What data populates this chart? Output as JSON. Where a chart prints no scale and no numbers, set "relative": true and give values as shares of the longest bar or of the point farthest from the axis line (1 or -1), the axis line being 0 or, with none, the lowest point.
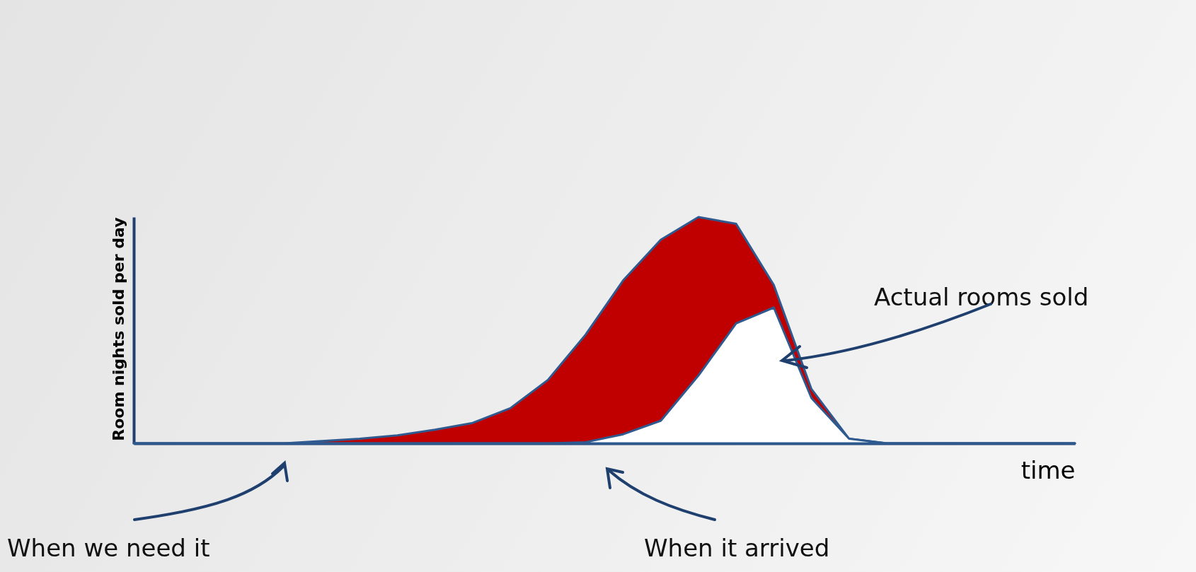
{
  "chart_data": {
    "type": "area",
    "relative": true,
    "xlabel": "time",
    "ylabel": "Room nights sold per day",
    "categories": [
      null,
      null,
      null,
      null,
      null,
      null,
      null,
      null,
      null,
      null,
      null,
      null,
      null,
      null,
      null,
      null,
      null,
      null,
      null,
      null,
      null,
      null,
      null,
      null,
      null,
      null
    ],
    "series": [
      {
        "color": "#c00000",
        "values": [
          0,
          0,
          0,
          0,
          0,
          0.01,
          0.02,
          0.035,
          0.06,
          0.09,
          0.155,
          0.28,
          0.48,
          0.72,
          0.9,
          1,
          0.97,
          0.7,
          0.24,
          0.02,
          0,
          0,
          0,
          0,
          0,
          0
        ]
      },
      {
        "color": "#ffffff",
        "values": [
          0,
          0,
          0,
          0,
          0,
          0,
          0,
          0,
          0,
          0,
          0,
          0,
          0.005,
          0.04,
          0.1,
          0.3,
          0.53,
          0.6,
          0.2,
          0.02,
          0,
          0,
          0,
          0,
          0,
          0
        ]
      }
    ],
    "annotations": [
      "Actual rooms sold",
      "When we need it",
      "When it arrived"
    ]
  }
}
